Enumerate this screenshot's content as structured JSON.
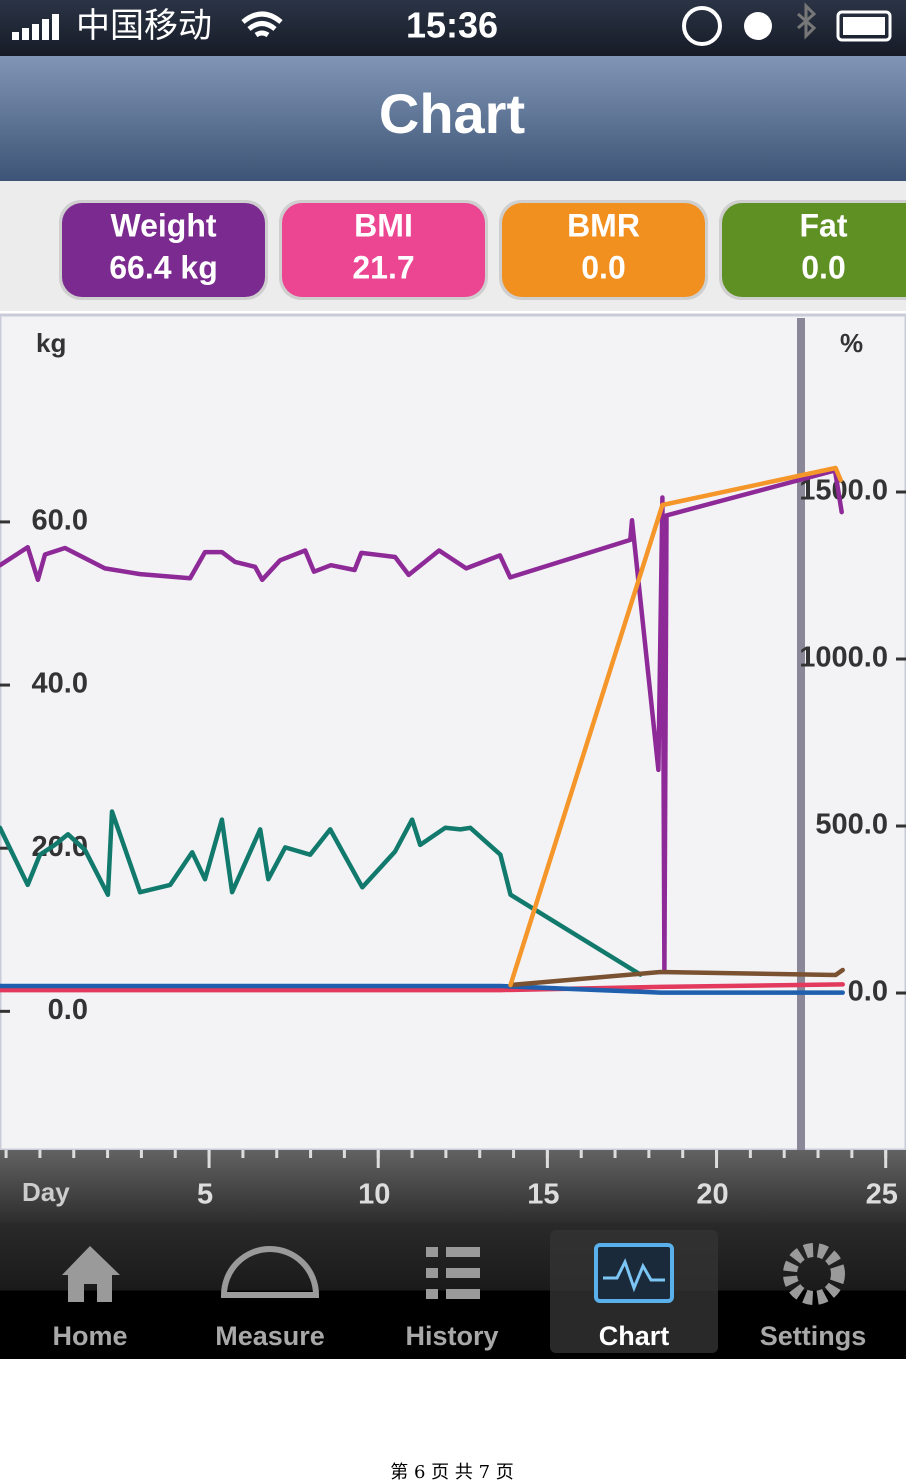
{
  "status_bar": {
    "carrier": "中国移动",
    "time": "15:36"
  },
  "nav": {
    "title": "Chart"
  },
  "tiles": [
    {
      "label": "Weight",
      "value": "66.4 kg",
      "color": "#7b2a8f"
    },
    {
      "label": "BMI",
      "value": "21.7",
      "color": "#ec4592"
    },
    {
      "label": "BMR",
      "value": "0.0",
      "color": "#f2901f"
    },
    {
      "label": "Fat",
      "value": "0.0",
      "color": "#5f9023"
    }
  ],
  "chart_data": {
    "type": "line",
    "y_label": "kg",
    "y2_label": "%",
    "x_label": "Day",
    "xlim": [
      -1.18,
      25.6
    ],
    "xticks": [
      5,
      10,
      15,
      20,
      25
    ],
    "ylim": [
      -17,
      85
    ],
    "yticks": [
      {
        "value": 0,
        "label": "0.0"
      },
      {
        "value": 20,
        "label": "20.0"
      },
      {
        "value": 40,
        "label": "40.0"
      },
      {
        "value": 60,
        "label": "60.0"
      }
    ],
    "y2lim": [
      -470,
      2021
    ],
    "y2ticks": [
      {
        "value": 0,
        "label": "0.0"
      },
      {
        "value": 500,
        "label": "500.0"
      },
      {
        "value": 1000,
        "label": "1000.0"
      },
      {
        "value": 1500,
        "label": "1500.0"
      }
    ],
    "series": [
      {
        "color": "#8e2a98",
        "x": [
          -1.18,
          -0.36,
          -0.06,
          0.15,
          0.74,
          1.92,
          2.96,
          4.44,
          4.88,
          5.38,
          5.77,
          6.36,
          6.57,
          7.1,
          7.84,
          8.1,
          8.6,
          9.3,
          9.5,
          10.5,
          10.9,
          11.8,
          12.6,
          13.6,
          13.9,
          17.45,
          17.5,
          18.28,
          18.4,
          18.46,
          18.52,
          23.5,
          23.7
        ],
        "values": [
          54.7,
          56.9,
          52.9,
          56,
          56.8,
          54.3,
          53.6,
          53.1,
          56.3,
          56.3,
          55.1,
          54.5,
          52.9,
          55.3,
          56.5,
          53.9,
          54.7,
          54.1,
          56.2,
          55.7,
          53.5,
          56.5,
          54.3,
          55.9,
          53.2,
          57.8,
          60.2,
          29.6,
          63.0,
          5.1,
          60.8,
          66.3,
          61.2
        ]
      },
      {
        "color": "#127a6c",
        "x": [
          -1.18,
          -0.36,
          0,
          0.44,
          0.83,
          1.33,
          2.01,
          2.13,
          2.96,
          3.85,
          4.5,
          4.88,
          5.38,
          5.68,
          6.51,
          6.75,
          7.25,
          7.99,
          8.58,
          9.53,
          10.5,
          11.0,
          11.24,
          11.98,
          12.43,
          12.72,
          13.61,
          13.91,
          17.75
        ],
        "values": [
          22.5,
          15.5,
          19.2,
          20.4,
          21.7,
          19.8,
          14.3,
          24.5,
          14.6,
          15.5,
          19.5,
          16.2,
          23.5,
          14.6,
          22.3,
          16.2,
          20.1,
          19.2,
          22.3,
          15.2,
          19.6,
          23.5,
          20.4,
          22.5,
          22.3,
          22.5,
          19.2,
          14.3,
          4.5
        ]
      },
      {
        "color": "#e2395c",
        "x": [
          -1.18,
          13.61,
          18.34,
          23.73
        ],
        "values": [
          2.6,
          2.6,
          3.0,
          3.3
        ]
      },
      {
        "color": "#1f5fae",
        "x": [
          -1.18,
          13.61,
          18.34,
          23.73
        ],
        "values": [
          3.1,
          3.1,
          2.3,
          2.3
        ]
      },
      {
        "color": "#7a5232",
        "axis": "y2",
        "x": [
          13.91,
          18.34,
          23.52,
          23.73
        ],
        "values": [
          24,
          63,
          54,
          69
        ]
      },
      {
        "color": "#f5962a",
        "axis": "y2",
        "x": [
          13.91,
          18.4,
          23.52,
          23.67
        ],
        "values": [
          24,
          1461,
          1572,
          1536
        ]
      }
    ]
  },
  "tab_bar": {
    "tabs": [
      "Home",
      "Measure",
      "History",
      "Chart",
      "Settings"
    ],
    "selected": 3
  },
  "footer": "第 6 页 共 7 页"
}
